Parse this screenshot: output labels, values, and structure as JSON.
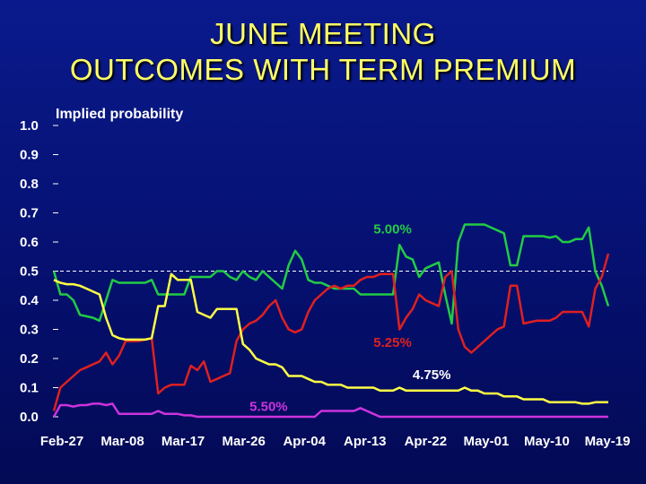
{
  "title_lines": [
    "JUNE MEETING",
    "OUTCOMES WITH TERM PREMIUM"
  ],
  "chart_data": {
    "type": "line",
    "ylabel": "Implied probability",
    "xlabel": "",
    "ylim": [
      0,
      1
    ],
    "y_ticks": [
      "0.0",
      "0.1",
      "0.2",
      "0.3",
      "0.4",
      "0.5",
      "0.6",
      "0.7",
      "0.8",
      "0.9",
      "1.0"
    ],
    "x_ticks": [
      "Feb-27",
      "Mar-08",
      "Mar-17",
      "Mar-26",
      "Apr-04",
      "Apr-13",
      "Apr-22",
      "May-01",
      "May-10",
      "May-19"
    ],
    "reference_lines": [
      0.5
    ],
    "series": [
      {
        "name": "5.00%",
        "color": "#22cc44",
        "values": [
          0.5,
          0.42,
          0.42,
          0.4,
          0.35,
          0.345,
          0.34,
          0.33,
          0.4,
          0.47,
          0.46,
          0.46,
          0.46,
          0.46,
          0.46,
          0.47,
          0.42,
          0.42,
          0.42,
          0.42,
          0.42,
          0.48,
          0.48,
          0.48,
          0.48,
          0.5,
          0.5,
          0.48,
          0.47,
          0.5,
          0.48,
          0.47,
          0.5,
          0.48,
          0.46,
          0.44,
          0.52,
          0.57,
          0.54,
          0.47,
          0.46,
          0.46,
          0.45,
          0.44,
          0.44,
          0.44,
          0.44,
          0.42,
          0.42,
          0.42,
          0.42,
          0.42,
          0.42,
          0.59,
          0.55,
          0.54,
          0.48,
          0.51,
          0.52,
          0.53,
          0.42,
          0.32,
          0.6,
          0.66,
          0.66,
          0.66,
          0.66,
          0.65,
          0.64,
          0.63,
          0.52,
          0.52,
          0.62,
          0.62,
          0.62,
          0.62,
          0.615,
          0.62,
          0.6,
          0.6,
          0.61,
          0.61,
          0.65,
          0.5,
          0.45,
          0.38
        ]
      },
      {
        "name": "5.25%",
        "color": "#e02020",
        "values": [
          0.02,
          0.1,
          0.12,
          0.14,
          0.16,
          0.17,
          0.18,
          0.19,
          0.22,
          0.18,
          0.21,
          0.26,
          0.26,
          0.26,
          0.265,
          0.27,
          0.08,
          0.1,
          0.11,
          0.11,
          0.11,
          0.175,
          0.16,
          0.19,
          0.12,
          0.13,
          0.14,
          0.15,
          0.26,
          0.3,
          0.32,
          0.33,
          0.35,
          0.38,
          0.4,
          0.34,
          0.3,
          0.29,
          0.3,
          0.36,
          0.4,
          0.42,
          0.44,
          0.45,
          0.44,
          0.45,
          0.45,
          0.47,
          0.48,
          0.48,
          0.49,
          0.49,
          0.49,
          0.3,
          0.34,
          0.37,
          0.42,
          0.4,
          0.39,
          0.38,
          0.48,
          0.5,
          0.3,
          0.24,
          0.22,
          0.24,
          0.26,
          0.28,
          0.3,
          0.31,
          0.45,
          0.45,
          0.32,
          0.325,
          0.33,
          0.33,
          0.33,
          0.34,
          0.36,
          0.36,
          0.36,
          0.36,
          0.31,
          0.44,
          0.48,
          0.56
        ]
      },
      {
        "name": "4.75%",
        "color": "#ffff44",
        "values": [
          0.47,
          0.46,
          0.455,
          0.455,
          0.45,
          0.44,
          0.43,
          0.42,
          0.34,
          0.28,
          0.27,
          0.265,
          0.265,
          0.265,
          0.265,
          0.27,
          0.38,
          0.38,
          0.49,
          0.47,
          0.47,
          0.47,
          0.36,
          0.35,
          0.34,
          0.37,
          0.37,
          0.37,
          0.37,
          0.25,
          0.23,
          0.2,
          0.19,
          0.18,
          0.18,
          0.17,
          0.14,
          0.14,
          0.14,
          0.13,
          0.12,
          0.12,
          0.11,
          0.11,
          0.11,
          0.1,
          0.1,
          0.1,
          0.1,
          0.1,
          0.09,
          0.09,
          0.09,
          0.1,
          0.09,
          0.09,
          0.09,
          0.09,
          0.09,
          0.09,
          0.09,
          0.09,
          0.09,
          0.1,
          0.09,
          0.09,
          0.08,
          0.08,
          0.08,
          0.07,
          0.07,
          0.07,
          0.06,
          0.06,
          0.06,
          0.06,
          0.05,
          0.05,
          0.05,
          0.05,
          0.05,
          0.045,
          0.045,
          0.05,
          0.05,
          0.05
        ]
      },
      {
        "name": "5.50%",
        "color": "#cc33dd",
        "values": [
          0.0,
          0.04,
          0.04,
          0.035,
          0.04,
          0.04,
          0.045,
          0.045,
          0.04,
          0.045,
          0.01,
          0.01,
          0.01,
          0.01,
          0.01,
          0.01,
          0.02,
          0.01,
          0.01,
          0.01,
          0.005,
          0.005,
          0.0,
          0.0,
          0.0,
          0.0,
          0.0,
          0.0,
          0.0,
          0.0,
          0.0,
          0.0,
          0.0,
          0.0,
          0.0,
          0.0,
          0.0,
          0.0,
          0.0,
          0.0,
          0.0,
          0.02,
          0.02,
          0.02,
          0.02,
          0.02,
          0.02,
          0.03,
          0.02,
          0.01,
          0.0,
          0.0,
          0.0,
          0.0,
          0.0,
          0.0,
          0.0,
          0.0,
          0.0,
          0.0,
          0.0,
          0.0,
          0.0,
          0.0,
          0.0,
          0.0,
          0.0,
          0.0,
          0.0,
          0.0,
          0.0,
          0.0,
          0.0,
          0.0,
          0.0,
          0.0,
          0.0,
          0.0,
          0.0,
          0.0,
          0.0,
          0.0,
          0.0,
          0.0,
          0.0,
          0.0
        ]
      }
    ],
    "annotations": [
      {
        "text": "5.00%",
        "color": "#22cc44",
        "x_index": 49,
        "y": 0.63
      },
      {
        "text": "5.25%",
        "color": "#e02020",
        "x_index": 49,
        "y": 0.24
      },
      {
        "text": "4.75%",
        "color": "#ffffff",
        "x_index": 55,
        "y": 0.13
      },
      {
        "text": "5.50%",
        "color": "#cc33dd",
        "x_index": 30,
        "y": 0.02
      }
    ]
  }
}
